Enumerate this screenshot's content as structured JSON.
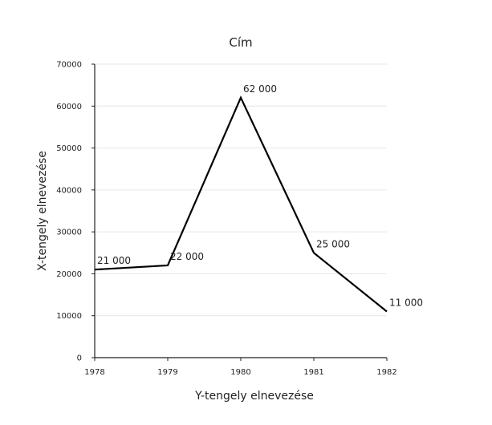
{
  "chart_data": {
    "type": "line",
    "title": "Cím",
    "xlabel": "Y-tengely elnevezése",
    "ylabel": "X-tengely elnevezése",
    "categories": [
      "1978",
      "1979",
      "1980",
      "1981",
      "1982"
    ],
    "y_ticks": [
      "0",
      "10000",
      "20000",
      "30000",
      "40000",
      "50000",
      "60000",
      "70000"
    ],
    "ylim": [
      0,
      70000
    ],
    "grid": true,
    "legend": "none",
    "series": [
      {
        "values": [
          21000,
          22000,
          62000,
          25000,
          11000
        ],
        "data_labels": [
          "21 000",
          "22 000",
          "62 000",
          "25 000",
          "11 000"
        ],
        "color": "#000000"
      }
    ]
  }
}
